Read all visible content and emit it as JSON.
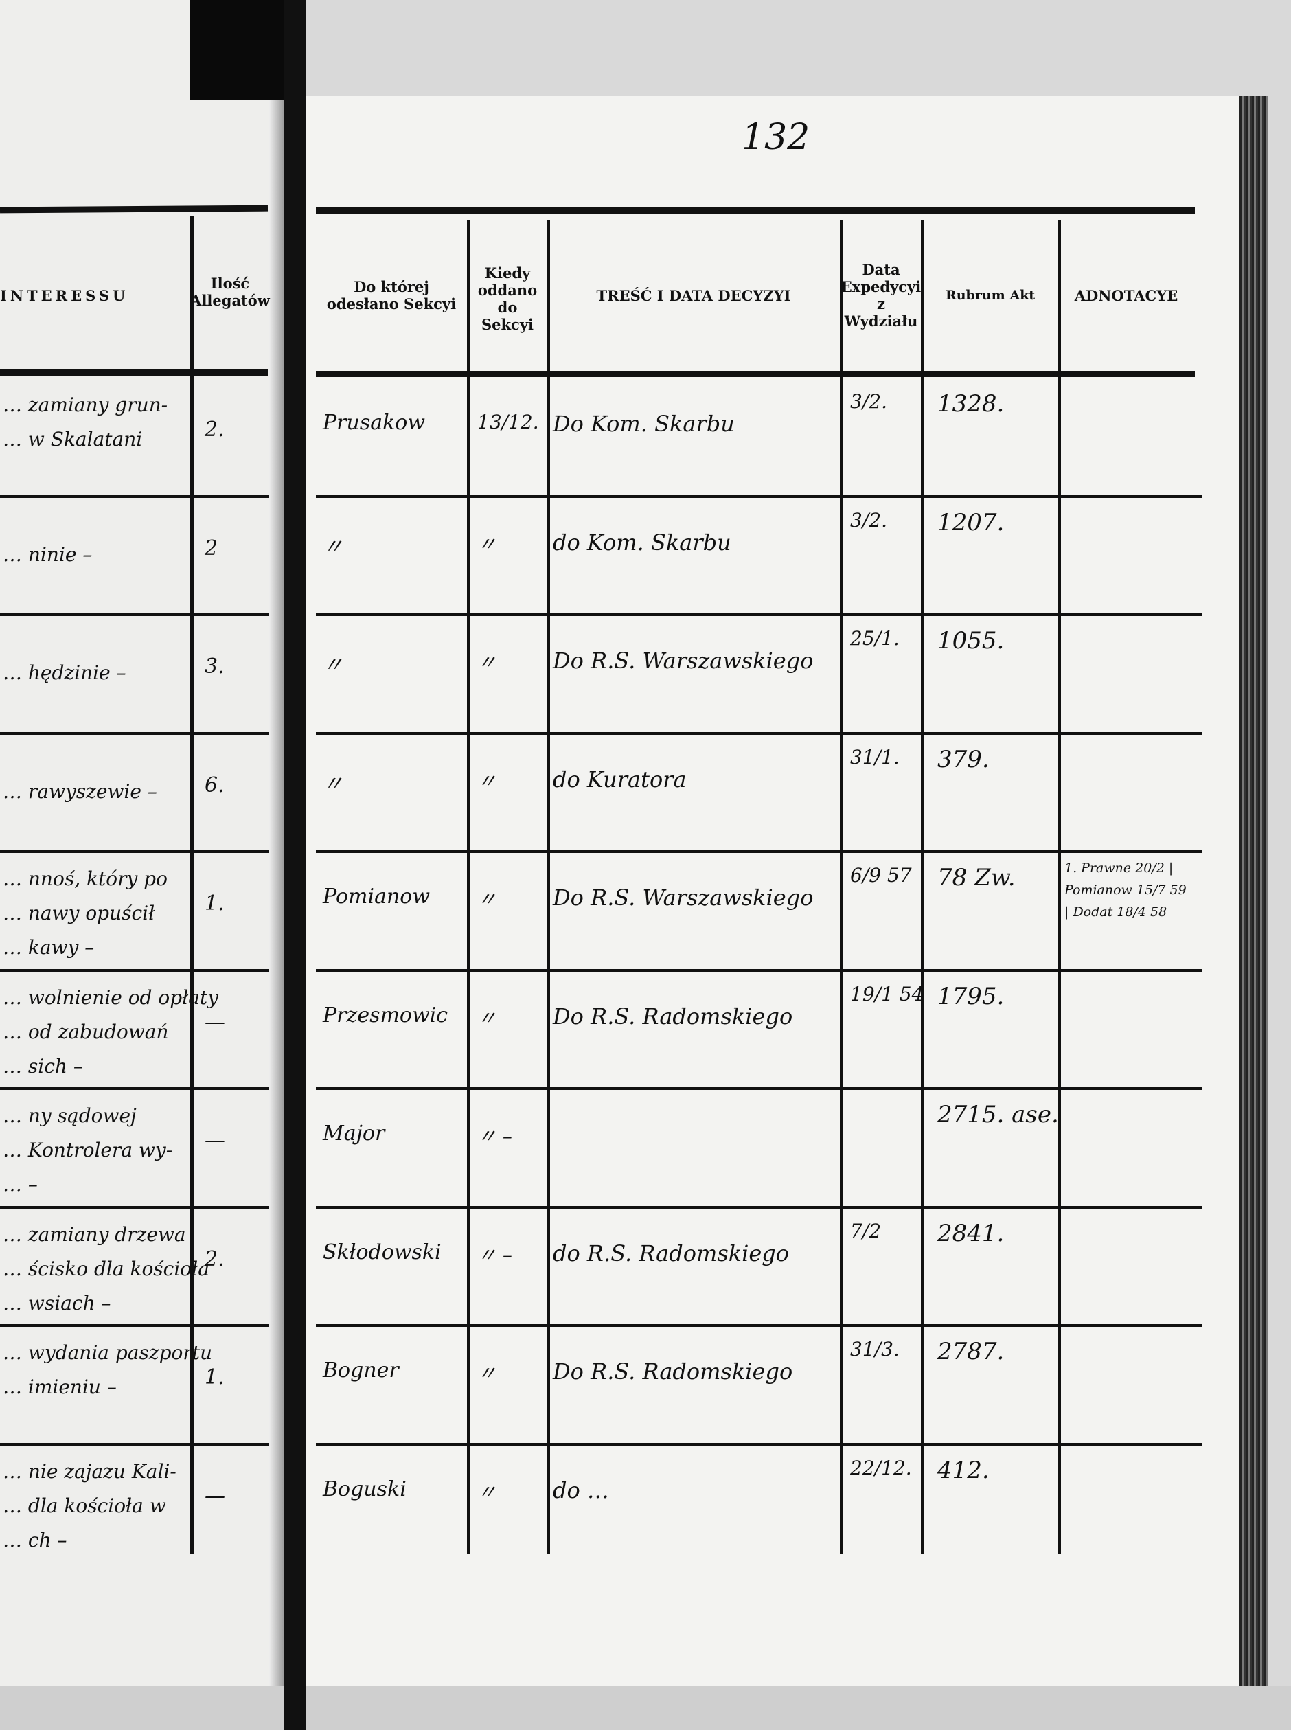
{
  "page_number": "132",
  "left_page": {
    "headers": {
      "interest": "INTERESSU",
      "attachments": "Ilość Allegatów"
    },
    "rows": [
      {
        "lines": [
          "… zamiany grun-",
          "… w Skalatani"
        ],
        "count": "2."
      },
      {
        "lines": [
          "… ninie –"
        ],
        "count": "2"
      },
      {
        "lines": [
          "… hędzinie –"
        ],
        "count": "3."
      },
      {
        "lines": [
          "… rawyszewie –"
        ],
        "count": "6."
      },
      {
        "lines": [
          "… nnoś, który po",
          "… nawy opuścił",
          "… kawy –"
        ],
        "count": "1."
      },
      {
        "lines": [
          "… wolnienie od opłaty",
          "… od zabudowań",
          "… sich –"
        ],
        "count": "—"
      },
      {
        "lines": [
          "… ny sądowej",
          "… Kontrolera wy-",
          "… –"
        ],
        "count": "—"
      },
      {
        "lines": [
          "… zamiany drzewa",
          "… ścisko dla kościoła",
          "… wsiach –"
        ],
        "count": "2."
      },
      {
        "lines": [
          "… wydania paszportu",
          "… imieniu –"
        ],
        "count": "1."
      },
      {
        "lines": [
          "… nie zajazu Kali-",
          "… dla kościoła w",
          "… ch –"
        ],
        "count": "—"
      }
    ]
  },
  "right_page": {
    "headers": {
      "section": "Do której odesłano Sekcyi",
      "when": "Kiedy oddano do Sekcyi",
      "decision": "TREŚĆ I DATA DECYZYI",
      "expedition": "Data Expedycyi z Wydziału",
      "rubrum": "Rubrum Akt",
      "notes": "ADNOTACYE"
    },
    "rows": [
      {
        "section": "Prusakow",
        "when": "13/12.",
        "decision": "Do Kom. Skarbu",
        "expedition": "3/2.",
        "rubrum": "1328.",
        "notes": ""
      },
      {
        "section": "〃",
        "when": "〃",
        "decision": "do Kom. Skarbu",
        "expedition": "3/2.",
        "rubrum": "1207.",
        "notes": ""
      },
      {
        "section": "〃",
        "when": "〃",
        "decision": "Do R.S. Warszawskiego",
        "expedition": "25/1.",
        "rubrum": "1055.",
        "notes": ""
      },
      {
        "section": "〃",
        "when": "〃",
        "decision": "do Kuratora",
        "expedition": "31/1.",
        "rubrum": "379.",
        "notes": ""
      },
      {
        "section": "Pomianow",
        "when": "〃",
        "decision": "Do R.S. Warszawskiego",
        "expedition": "6/9 57",
        "rubrum": "78 Zw.",
        "notes": "1. Prawne 20/2 | Pomianow 15/7 59 | Dodat 18/4 58"
      },
      {
        "section": "Przesmowic",
        "when": "〃",
        "decision": "Do R.S. Radomskiego",
        "expedition": "19/1 54",
        "rubrum": "1795.",
        "notes": ""
      },
      {
        "section": "Major",
        "when": "〃 –",
        "decision": "",
        "expedition": "",
        "rubrum": "2715. ase.",
        "notes": ""
      },
      {
        "section": "Skłodowski",
        "when": "〃 –",
        "decision": "do R.S. Radomskiego",
        "expedition": "7/2",
        "rubrum": "2841.",
        "notes": ""
      },
      {
        "section": "Bogner",
        "when": "〃",
        "decision": "Do R.S. Radomskiego",
        "expedition": "31/3.",
        "rubrum": "2787.",
        "notes": ""
      },
      {
        "section": "Boguski",
        "when": "〃",
        "decision": "do …",
        "expedition": "22/12.",
        "rubrum": "412.",
        "notes": ""
      }
    ]
  }
}
